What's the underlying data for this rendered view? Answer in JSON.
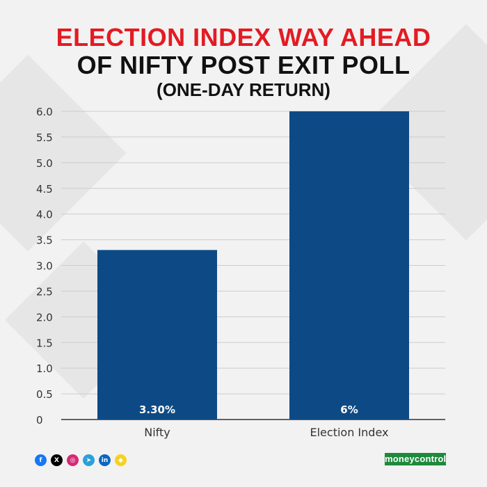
{
  "header": {
    "title_line1": "ELECTION INDEX WAY AHEAD",
    "title_line2": "OF NIFTY POST EXIT POLL",
    "subtitle": "(ONE-DAY RETURN)"
  },
  "chart_data": {
    "type": "bar",
    "categories": [
      "Nifty",
      "Election Index"
    ],
    "values": [
      3.3,
      6.0
    ],
    "data_labels": [
      "3.30%",
      "6%"
    ],
    "ylim": [
      0,
      6.0
    ],
    "yticks": [
      "0",
      "0.5",
      "1.0",
      "1.5",
      "2.0",
      "2.5",
      "3.0",
      "3.5",
      "4.0",
      "4.5",
      "5.0",
      "5.5",
      "6.0"
    ],
    "grid": true,
    "bar_color": "#0d4a85",
    "xlabel": "",
    "ylabel": ""
  },
  "footer": {
    "social_icons": [
      {
        "name": "facebook-icon",
        "glyph": "f",
        "color": "#1877f2"
      },
      {
        "name": "x-icon",
        "glyph": "X",
        "color": "#000000"
      },
      {
        "name": "instagram-icon",
        "glyph": "◎",
        "color": "#d62976"
      },
      {
        "name": "telegram-icon",
        "glyph": "➤",
        "color": "#2aa1da"
      },
      {
        "name": "linkedin-icon",
        "glyph": "in",
        "color": "#0a66c2"
      },
      {
        "name": "snapchat-icon",
        "glyph": "◆",
        "color": "#f7d21a"
      }
    ],
    "brand": "moneycontrol"
  }
}
